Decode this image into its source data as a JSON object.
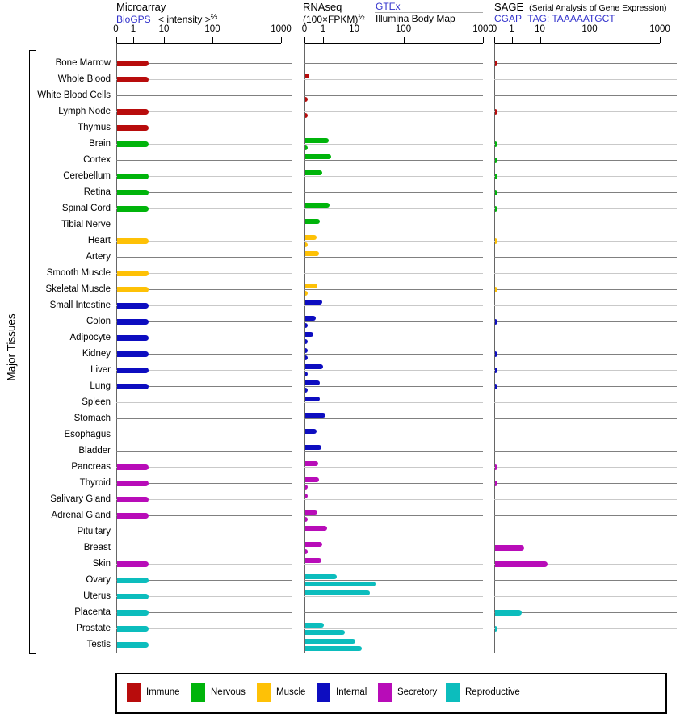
{
  "figure": {
    "left_axis_label": "Major Tissues"
  },
  "axis": {
    "tick_labels": [
      "0",
      "1",
      "10",
      "100",
      "1000"
    ]
  },
  "panels": {
    "microarray": {
      "title": "Microarray",
      "link": "BioGPS",
      "subtitle": "< intensity >",
      "exponent": "⅔"
    },
    "rnaseq": {
      "title": "RNAseq",
      "formula": "(100×FPKM)",
      "exponent": "½",
      "link": "GTEx",
      "dataset2": "Illumina Body Map"
    },
    "sage": {
      "title": "SAGE",
      "title_note": "(Serial Analysis of Gene Expression)",
      "link": "CGAP",
      "tag": "TAG: TAAAAATGCT"
    }
  },
  "legend": {
    "items": [
      {
        "label": "Immune",
        "color": "#b80c0c"
      },
      {
        "label": "Nervous",
        "color": "#00b40b"
      },
      {
        "label": "Muscle",
        "color": "#fec106"
      },
      {
        "label": "Internal",
        "color": "#0d0dc0"
      },
      {
        "label": "Secretory",
        "color": "#b80cb8"
      },
      {
        "label": "Reproductive",
        "color": "#0cbdbd"
      }
    ]
  },
  "chart_data": {
    "type": "bar",
    "orientation": "horizontal",
    "x_ticks": [
      0,
      1,
      10,
      100,
      1000
    ],
    "x_scale": "compressed log (decade width grows ~1.6x), 0 segment linear",
    "panel_series": [
      "Microarray BioGPS < intensity >^2/3",
      "RNAseq (100×FPKM)^1/2 — top bar GTEx, bottom bar Illumina Body Map",
      "SAGE CGAP tag TAAAAATGCT"
    ],
    "tissues": [
      {
        "name": "Bone Marrow",
        "category": "Immune",
        "microarray": 3,
        "rnaseq_gtex": null,
        "rnaseq_illumina": null,
        "sage": 0.1
      },
      {
        "name": "Whole Blood",
        "category": "Immune",
        "microarray": 3,
        "rnaseq_gtex": 0.2,
        "rnaseq_illumina": null,
        "sage": null
      },
      {
        "name": "White Blood Cells",
        "category": "Immune",
        "microarray": null,
        "rnaseq_gtex": null,
        "rnaseq_illumina": 0.08,
        "sage": null
      },
      {
        "name": "Lymph Node",
        "category": "Immune",
        "microarray": 3,
        "rnaseq_gtex": null,
        "rnaseq_illumina": 0.08,
        "sage": 0.1
      },
      {
        "name": "Thymus",
        "category": "Immune",
        "microarray": 3,
        "rnaseq_gtex": null,
        "rnaseq_illumina": null,
        "sage": null
      },
      {
        "name": "Brain",
        "category": "Nervous",
        "microarray": 3,
        "rnaseq_gtex": 1.4,
        "rnaseq_illumina": 0.1,
        "sage": 0.1
      },
      {
        "name": "Cortex",
        "category": "Nervous",
        "microarray": null,
        "rnaseq_gtex": 1.7,
        "rnaseq_illumina": null,
        "sage": 0.1
      },
      {
        "name": "Cerebellum",
        "category": "Nervous",
        "microarray": 3,
        "rnaseq_gtex": 0.9,
        "rnaseq_illumina": null,
        "sage": 0.1
      },
      {
        "name": "Retina",
        "category": "Nervous",
        "microarray": 3,
        "rnaseq_gtex": null,
        "rnaseq_illumina": null,
        "sage": 0.1
      },
      {
        "name": "Spinal Cord",
        "category": "Nervous",
        "microarray": 3,
        "rnaseq_gtex": 1.5,
        "rnaseq_illumina": null,
        "sage": 0.1
      },
      {
        "name": "Tibial Nerve",
        "category": "Nervous",
        "microarray": null,
        "rnaseq_gtex": 0.8,
        "rnaseq_illumina": null,
        "sage": null
      },
      {
        "name": "Heart",
        "category": "Muscle",
        "microarray": 3,
        "rnaseq_gtex": 0.6,
        "rnaseq_illumina": 0.07,
        "sage": 0.1
      },
      {
        "name": "Artery",
        "category": "Muscle",
        "microarray": null,
        "rnaseq_gtex": 0.75,
        "rnaseq_illumina": null,
        "sage": null
      },
      {
        "name": "Smooth Muscle",
        "category": "Muscle",
        "microarray": 3,
        "rnaseq_gtex": null,
        "rnaseq_illumina": null,
        "sage": null
      },
      {
        "name": "Skeletal Muscle",
        "category": "Muscle",
        "microarray": 3,
        "rnaseq_gtex": 0.65,
        "rnaseq_illumina": 0.05,
        "sage": 0.1
      },
      {
        "name": "Small Intestine",
        "category": "Internal",
        "microarray": 3,
        "rnaseq_gtex": 0.9,
        "rnaseq_illumina": null,
        "sage": null
      },
      {
        "name": "Colon",
        "category": "Internal",
        "microarray": 3,
        "rnaseq_gtex": 0.55,
        "rnaseq_illumina": 0.05,
        "sage": 0.1
      },
      {
        "name": "Adipocyte",
        "category": "Internal",
        "microarray": 3,
        "rnaseq_gtex": 0.45,
        "rnaseq_illumina": 0.05,
        "sage": null
      },
      {
        "name": "Kidney",
        "category": "Internal",
        "microarray": 3,
        "rnaseq_gtex": 0.08,
        "rnaseq_illumina": 0.08,
        "sage": 0.1
      },
      {
        "name": "Liver",
        "category": "Internal",
        "microarray": 3,
        "rnaseq_gtex": 0.95,
        "rnaseq_illumina": 0.05,
        "sage": 0.1
      },
      {
        "name": "Lung",
        "category": "Internal",
        "microarray": 3,
        "rnaseq_gtex": 0.8,
        "rnaseq_illumina": 0.05,
        "sage": 0.1
      },
      {
        "name": "Spleen",
        "category": "Internal",
        "microarray": null,
        "rnaseq_gtex": 0.8,
        "rnaseq_illumina": null,
        "sage": null
      },
      {
        "name": "Stomach",
        "category": "Internal",
        "microarray": null,
        "rnaseq_gtex": 1.1,
        "rnaseq_illumina": null,
        "sage": null
      },
      {
        "name": "Esophagus",
        "category": "Internal",
        "microarray": null,
        "rnaseq_gtex": 0.6,
        "rnaseq_illumina": null,
        "sage": null
      },
      {
        "name": "Bladder",
        "category": "Internal",
        "microarray": null,
        "rnaseq_gtex": 0.85,
        "rnaseq_illumina": null,
        "sage": null
      },
      {
        "name": "Pancreas",
        "category": "Secretory",
        "microarray": 3,
        "rnaseq_gtex": 0.7,
        "rnaseq_illumina": null,
        "sage": 0.1
      },
      {
        "name": "Thyroid",
        "category": "Secretory",
        "microarray": 3,
        "rnaseq_gtex": 0.75,
        "rnaseq_illumina": 0.05,
        "sage": 0.1
      },
      {
        "name": "Salivary Gland",
        "category": "Secretory",
        "microarray": 3,
        "rnaseq_gtex": 0.06,
        "rnaseq_illumina": null,
        "sage": null
      },
      {
        "name": "Adrenal Gland",
        "category": "Secretory",
        "microarray": 3,
        "rnaseq_gtex": 0.65,
        "rnaseq_illumina": 0.05,
        "sage": null
      },
      {
        "name": "Pituitary",
        "category": "Secretory",
        "microarray": null,
        "rnaseq_gtex": 1.3,
        "rnaseq_illumina": null,
        "sage": null
      },
      {
        "name": "Breast",
        "category": "Secretory",
        "microarray": null,
        "rnaseq_gtex": 0.9,
        "rnaseq_illumina": 0.05,
        "sage": 2.6
      },
      {
        "name": "Skin",
        "category": "Secretory",
        "microarray": 3,
        "rnaseq_gtex": 0.85,
        "rnaseq_illumina": null,
        "sage": 14
      },
      {
        "name": "Ovary",
        "category": "Reproductive",
        "microarray": 3,
        "rnaseq_gtex": 2.6,
        "rnaseq_illumina": 26,
        "sage": null
      },
      {
        "name": "Uterus",
        "category": "Reproductive",
        "microarray": 3,
        "rnaseq_gtex": 20,
        "rnaseq_illumina": null,
        "sage": null
      },
      {
        "name": "Placenta",
        "category": "Reproductive",
        "microarray": 3,
        "rnaseq_gtex": null,
        "rnaseq_illumina": null,
        "sage": 2.2
      },
      {
        "name": "Prostate",
        "category": "Reproductive",
        "microarray": 3,
        "rnaseq_gtex": 1.0,
        "rnaseq_illumina": 4.8,
        "sage": 0.1
      },
      {
        "name": "Testis",
        "category": "Reproductive",
        "microarray": 3,
        "rnaseq_gtex": 10,
        "rnaseq_illumina": 14,
        "sage": null
      }
    ]
  }
}
